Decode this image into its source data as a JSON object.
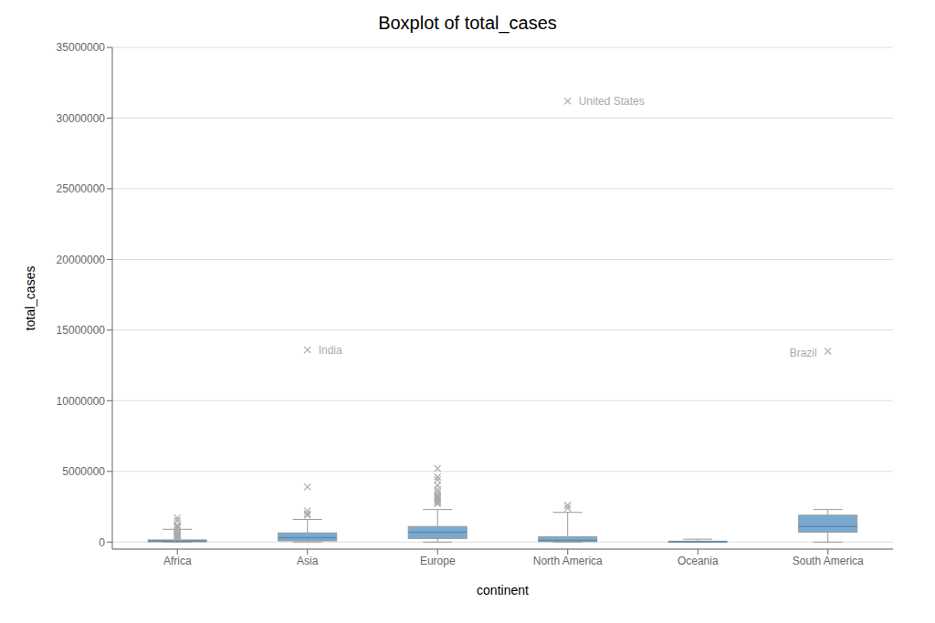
{
  "chart_data": {
    "type": "box",
    "title": "Boxplot of total_cases",
    "x_label": "continent",
    "y_label": "total_cases",
    "categories": [
      "Africa",
      "Asia",
      "Europe",
      "North America",
      "Oceania",
      "South America"
    ],
    "boxes": [
      {
        "whislo": 0,
        "q1": 20000,
        "med": 60000,
        "q3": 150000,
        "whishi": 900000,
        "fliers": [
          1500000,
          1700000,
          300000,
          350000,
          400000,
          450000,
          500000,
          550000,
          600000,
          650000,
          700000,
          800000,
          1000000,
          1100000,
          1200000
        ]
      },
      {
        "whislo": 0,
        "q1": 80000,
        "med": 300000,
        "q3": 650000,
        "whishi": 1600000,
        "fliers": [
          13600000,
          1900000,
          2000000,
          3900000,
          2200000
        ]
      },
      {
        "whislo": 0,
        "q1": 250000,
        "med": 700000,
        "q3": 1100000,
        "whishi": 2300000,
        "fliers": [
          3000000,
          3200000,
          3500000,
          4000000,
          4400000,
          4600000,
          5200000,
          2700000,
          2800000,
          2900000,
          3100000,
          3300000,
          3700000
        ]
      },
      {
        "whislo": 0,
        "q1": 30000,
        "med": 120000,
        "q3": 380000,
        "whishi": 2100000,
        "fliers": [
          31200000,
          2400000,
          2600000
        ]
      },
      {
        "whislo": 0,
        "q1": 5000,
        "med": 20000,
        "q3": 60000,
        "whishi": 200000,
        "fliers": []
      },
      {
        "whislo": 0,
        "q1": 700000,
        "med": 1100000,
        "q3": 1900000,
        "whishi": 2300000,
        "fliers": [
          13500000
        ]
      }
    ],
    "color": "#7aaacf",
    "ylim": [
      -500000,
      35000000
    ],
    "yticks": [
      0,
      5000000,
      10000000,
      15000000,
      20000000,
      25000000,
      30000000,
      35000000
    ],
    "grid": true,
    "annotations": [
      {
        "text": "United States",
        "x": 4,
        "y": 31200000
      },
      {
        "text": "India",
        "x": 2,
        "y": 13600000
      },
      {
        "text": "Brazil",
        "x": 6,
        "y": 13400000
      }
    ]
  }
}
